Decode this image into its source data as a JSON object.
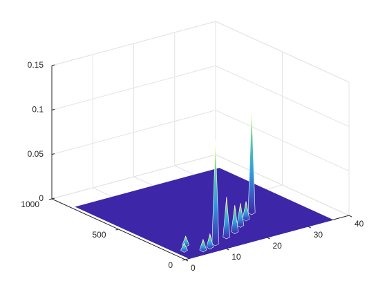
{
  "chart_data": {
    "type": "surface3d",
    "xlim": [
      0,
      40
    ],
    "xticks": [
      0,
      10,
      20,
      30,
      40
    ],
    "ylim": [
      0,
      1000
    ],
    "yticks": [
      0,
      500,
      1000
    ],
    "zlim": [
      0,
      0.15
    ],
    "zticks": [
      0,
      0.05,
      0.1,
      0.15
    ],
    "grid": true,
    "surface": {
      "x": [
        1,
        36
      ],
      "y": [
        0,
        850
      ],
      "color": "#3e26a8"
    },
    "peaks": {
      "x": [
        26,
        10,
        20,
        17,
        23,
        14,
        6,
        5,
        3,
        8
      ],
      "y": [
        300,
        80,
        200,
        150,
        250,
        120,
        50,
        150,
        100,
        60
      ],
      "z": [
        0.12,
        0.117,
        0.025,
        0.03,
        0.02,
        0.045,
        0.012,
        0.01,
        0.008,
        0.015
      ]
    }
  }
}
